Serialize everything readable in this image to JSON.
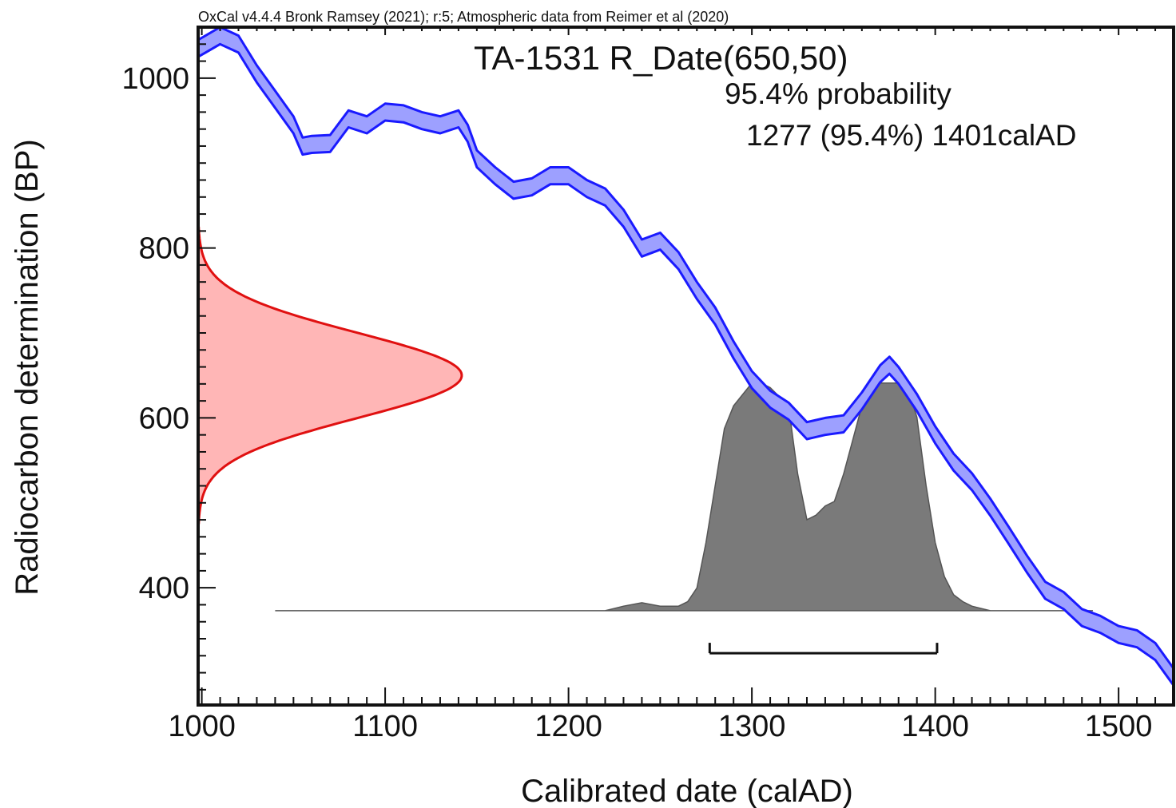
{
  "chart_data": {
    "type": "area",
    "header": "OxCal v4.4.4 Bronk Ramsey (2021); r:5; Atmospheric data from Reimer et al (2020)",
    "title": "TA-1531 R_Date(650,50)",
    "probability_label": "95.4% probability",
    "range_label": "1277 (95.4%) 1401calAD",
    "xlabel": "Calibrated date (calAD)",
    "ylabel": "Radiocarbon determination (BP)",
    "xlim": [
      998,
      1530
    ],
    "ylim": [
      262,
      1060
    ],
    "x_ticks": [
      1000,
      1100,
      1200,
      1300,
      1400,
      1500
    ],
    "y_ticks": [
      400,
      600,
      800,
      1000
    ],
    "x_tick_labels": [
      "1000",
      "1100",
      "1200",
      "1300",
      "1400",
      "1500"
    ],
    "y_tick_labels": [
      "400",
      "600",
      "800",
      "1000"
    ],
    "colors": {
      "calibration_line": "#1a1aff",
      "calibration_fill": "#9da0ff",
      "radiocarbon_line": "#e01010",
      "radiocarbon_fill": "#ffb6b6",
      "posterior_fill": "#7a7a7a",
      "axes": "#111111"
    },
    "calibration_curve": {
      "x": [
        998,
        1010,
        1020,
        1030,
        1040,
        1050,
        1055,
        1060,
        1070,
        1080,
        1090,
        1100,
        1110,
        1120,
        1130,
        1140,
        1145,
        1150,
        1160,
        1170,
        1180,
        1190,
        1200,
        1210,
        1220,
        1230,
        1240,
        1250,
        1260,
        1270,
        1280,
        1290,
        1300,
        1310,
        1320,
        1330,
        1340,
        1350,
        1360,
        1370,
        1375,
        1380,
        1390,
        1400,
        1410,
        1420,
        1430,
        1440,
        1450,
        1460,
        1470,
        1480,
        1490,
        1500,
        1510,
        1520,
        1530
      ],
      "y": [
        1035,
        1050,
        1040,
        1005,
        975,
        945,
        920,
        922,
        923,
        952,
        945,
        960,
        958,
        950,
        945,
        952,
        935,
        905,
        885,
        868,
        872,
        885,
        885,
        870,
        860,
        835,
        800,
        808,
        785,
        750,
        720,
        680,
        645,
        622,
        608,
        585,
        590,
        593,
        620,
        652,
        662,
        650,
        618,
        580,
        548,
        525,
        495,
        462,
        428,
        397,
        385,
        365,
        357,
        345,
        340,
        325,
        295
      ],
      "band_width": 10
    },
    "radiocarbon_density": {
      "mean": 650,
      "sd": 50,
      "range": [
        475,
        825
      ]
    },
    "posterior_density": {
      "x": [
        1040,
        1220,
        1230,
        1240,
        1250,
        1260,
        1265,
        1270,
        1275,
        1280,
        1285,
        1290,
        1300,
        1305,
        1310,
        1320,
        1325,
        1330,
        1335,
        1340,
        1345,
        1350,
        1355,
        1360,
        1365,
        1370,
        1375,
        1380,
        1385,
        1390,
        1395,
        1400,
        1405,
        1410,
        1415,
        1420,
        1430,
        1440,
        1486
      ],
      "y": [
        0,
        0,
        0.02,
        0.035,
        0.02,
        0.02,
        0.04,
        0.1,
        0.3,
        0.55,
        0.8,
        0.9,
        1.0,
        1.0,
        0.98,
        0.9,
        0.6,
        0.4,
        0.42,
        0.46,
        0.48,
        0.6,
        0.75,
        0.9,
        0.98,
        1.0,
        1.0,
        1.0,
        0.98,
        0.85,
        0.55,
        0.3,
        0.15,
        0.07,
        0.04,
        0.02,
        0.0,
        0.0,
        0.0
      ],
      "baseline_y": 373,
      "peak_height_units": 268
    },
    "range_bar": {
      "from": 1277,
      "to": 1401,
      "y": 323
    }
  }
}
